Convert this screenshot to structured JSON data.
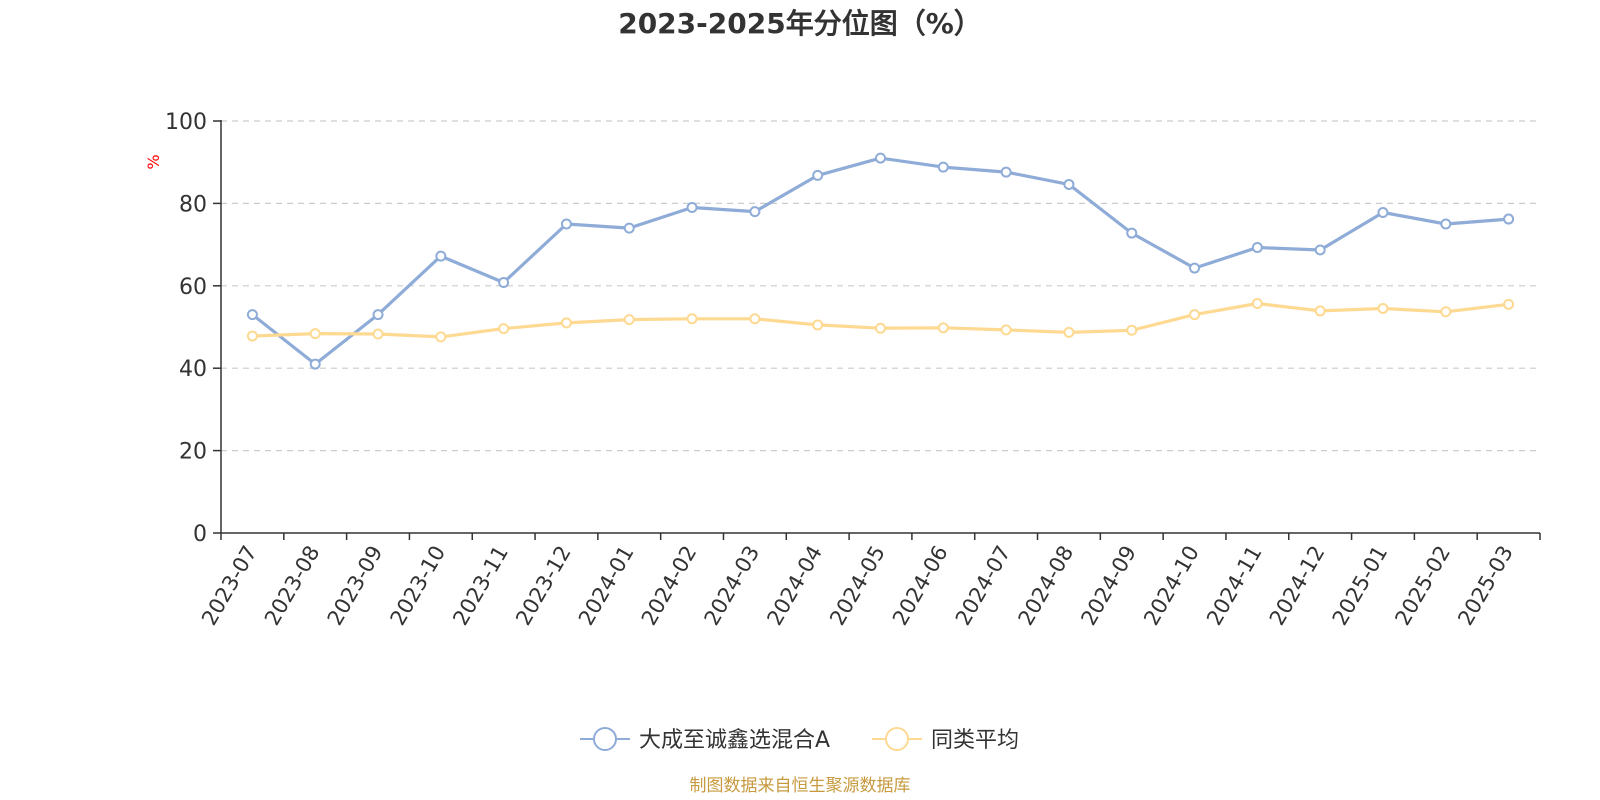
{
  "chart_data": {
    "type": "line",
    "title": "2023-2025年分位图（%）",
    "ylabel": "%",
    "xlabel": "",
    "ylim": [
      0,
      100
    ],
    "yticks": [
      0,
      20,
      40,
      60,
      80,
      100
    ],
    "grid": true,
    "legend_position": "bottom-center",
    "categories": [
      "2023-07",
      "2023-08",
      "2023-09",
      "2023-10",
      "2023-11",
      "2023-12",
      "2024-01",
      "2024-02",
      "2024-03",
      "2024-04",
      "2024-05",
      "2024-06",
      "2024-07",
      "2024-08",
      "2024-09",
      "2024-10",
      "2024-11",
      "2024-12",
      "2025-01",
      "2025-02",
      "2025-03"
    ],
    "series": [
      {
        "name": "大成至诚鑫选混合A",
        "color": "#8eacd7",
        "values": [
          53.0,
          41.0,
          53.0,
          67.2,
          60.8,
          75.0,
          74.0,
          79.0,
          78.0,
          86.8,
          91.0,
          88.8,
          87.6,
          84.6,
          72.8,
          64.3,
          69.3,
          68.7,
          77.8,
          75.0,
          76.2
        ]
      },
      {
        "name": "同类平均",
        "color": "#fdd992",
        "values": [
          47.8,
          48.4,
          48.3,
          47.6,
          49.6,
          51.0,
          51.8,
          52.0,
          52.0,
          50.5,
          49.7,
          49.8,
          49.3,
          48.7,
          49.2,
          53.0,
          55.7,
          53.9,
          54.5,
          53.7,
          55.5
        ]
      }
    ]
  },
  "source_text": "制图数据来自恒生聚源数据库",
  "colors": {
    "title": "#333333",
    "axis": "#333333",
    "grid": "#cccccc",
    "ylabel": "#ff0000",
    "source": "#c79a3f"
  }
}
